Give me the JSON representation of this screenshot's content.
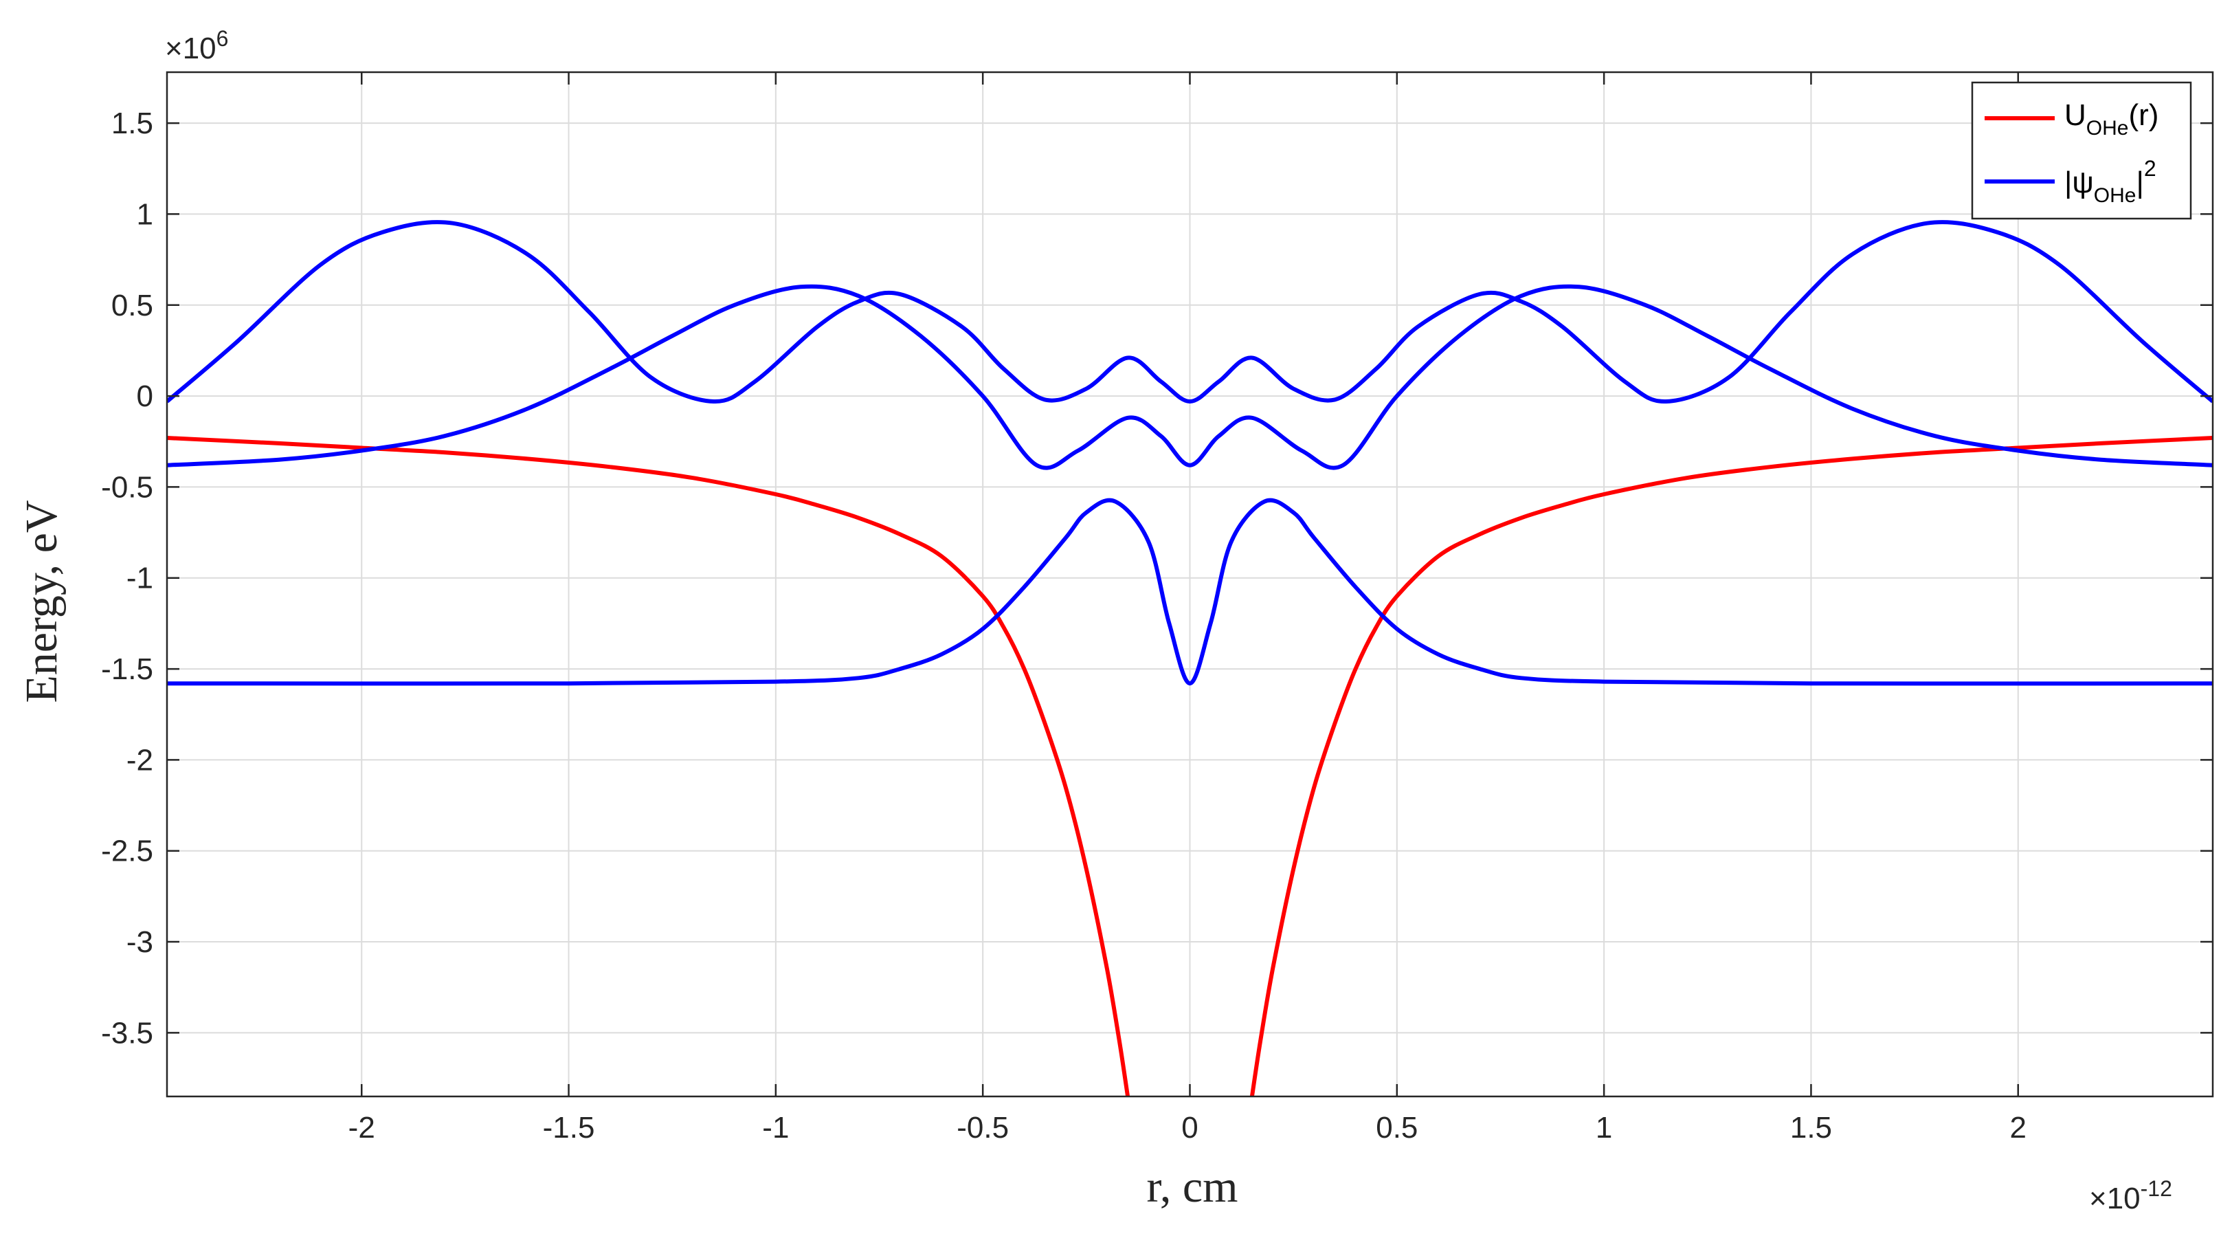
{
  "chart_data": {
    "type": "line",
    "title": "",
    "xlabel": "r, cm",
    "ylabel": "Energy, eV",
    "x_multiplier_label": "×10",
    "x_multiplier_exp": "-12",
    "y_multiplier_label": "×10",
    "y_multiplier_exp": "6",
    "xlim": [
      -2.47,
      2.47
    ],
    "ylim": [
      -3.85,
      1.78
    ],
    "x_ticks": [
      -2,
      -1.5,
      -1,
      -0.5,
      0,
      0.5,
      1,
      1.5,
      2
    ],
    "x_tick_labels": [
      "-2",
      "-1.5",
      "-1",
      "-0.5",
      "0",
      "0.5",
      "1",
      "1.5",
      "2"
    ],
    "y_ticks": [
      1.5,
      1,
      0.5,
      0,
      -0.5,
      -1,
      -1.5,
      -2,
      -2.5,
      -3,
      -3.5
    ],
    "y_tick_labels": [
      "1.5",
      "1",
      "0.5",
      "0",
      "-0.5",
      "-1",
      "-1.5",
      "-2",
      "-2.5",
      "-3",
      "-3.5"
    ],
    "grid": true,
    "legend_position": "top-right",
    "legend": [
      {
        "base": "U",
        "sub": "OHe",
        "tail": "(r)",
        "sup": "",
        "color": "#ff0000"
      },
      {
        "base": "|ψ",
        "sub": "OHe",
        "tail": "|",
        "sup": "2",
        "color": "#0000ff"
      }
    ],
    "series": [
      {
        "name": "U_OHe(r)",
        "color": "#ff0000",
        "x": [
          -2.47,
          -2.2,
          -2.0,
          -1.8,
          -1.6,
          -1.4,
          -1.2,
          -1.0,
          -0.9,
          -0.8,
          -0.7,
          -0.6,
          -0.5,
          -0.45,
          -0.4,
          -0.35,
          -0.3,
          -0.25,
          -0.2,
          -0.17,
          -0.15
        ],
        "y": [
          -0.23,
          -0.26,
          -0.285,
          -0.31,
          -0.345,
          -0.39,
          -0.45,
          -0.54,
          -0.6,
          -0.67,
          -0.76,
          -0.88,
          -1.1,
          -1.27,
          -1.5,
          -1.8,
          -2.15,
          -2.6,
          -3.15,
          -3.55,
          -3.85
        ]
      },
      {
        "name": "U_OHe(r)",
        "color": "#ff0000",
        "x": [
          0.15,
          0.17,
          0.2,
          0.25,
          0.3,
          0.35,
          0.4,
          0.45,
          0.5,
          0.6,
          0.7,
          0.8,
          0.9,
          1.0,
          1.2,
          1.4,
          1.6,
          1.8,
          2.0,
          2.2,
          2.47
        ],
        "y": [
          -3.85,
          -3.55,
          -3.15,
          -2.6,
          -2.15,
          -1.8,
          -1.5,
          -1.27,
          -1.1,
          -0.88,
          -0.76,
          -0.67,
          -0.6,
          -0.54,
          -0.45,
          -0.39,
          -0.345,
          -0.31,
          -0.285,
          -0.26,
          -0.23
        ]
      },
      {
        "name": "|ψ_OHe|^2",
        "color": "#0000ff",
        "x": [
          -2.47,
          -2.3,
          -2.1,
          -1.95,
          -1.78,
          -1.6,
          -1.45,
          -1.3,
          -1.15,
          -1.05,
          -0.9,
          -0.8,
          -0.7,
          -0.55,
          -0.45,
          -0.35,
          -0.25,
          -0.15,
          -0.07,
          0,
          0.07,
          0.15,
          0.25,
          0.35,
          0.45,
          0.55,
          0.7,
          0.8,
          0.9,
          1.05,
          1.15,
          1.3,
          1.45,
          1.6,
          1.78,
          1.95,
          2.1,
          2.3,
          2.47
        ],
        "y": [
          -0.03,
          0.3,
          0.72,
          0.9,
          0.95,
          0.78,
          0.46,
          0.1,
          -0.03,
          0.08,
          0.38,
          0.52,
          0.56,
          0.38,
          0.15,
          -0.02,
          0.04,
          0.21,
          0.08,
          -0.03,
          0.08,
          0.21,
          0.04,
          -0.02,
          0.15,
          0.38,
          0.56,
          0.52,
          0.38,
          0.08,
          -0.03,
          0.1,
          0.46,
          0.78,
          0.95,
          0.9,
          0.72,
          0.3,
          -0.03
        ]
      },
      {
        "name": "|ψ_OHe|^2",
        "color": "#0000ff",
        "x": [
          -2.47,
          -2.2,
          -2.0,
          -1.8,
          -1.6,
          -1.4,
          -1.25,
          -1.1,
          -0.94,
          -0.8,
          -0.65,
          -0.5,
          -0.37,
          -0.27,
          -0.15,
          -0.07,
          0,
          0.07,
          0.15,
          0.27,
          0.37,
          0.5,
          0.65,
          0.8,
          0.94,
          1.1,
          1.25,
          1.4,
          1.6,
          1.8,
          2.0,
          2.2,
          2.47
        ],
        "y": [
          -0.38,
          -0.35,
          -0.3,
          -0.22,
          -0.07,
          0.15,
          0.33,
          0.5,
          0.6,
          0.55,
          0.33,
          0.0,
          -0.38,
          -0.3,
          -0.12,
          -0.22,
          -0.38,
          -0.22,
          -0.12,
          -0.3,
          -0.38,
          0.0,
          0.33,
          0.55,
          0.6,
          0.5,
          0.33,
          0.15,
          -0.07,
          -0.22,
          -0.3,
          -0.35,
          -0.38
        ]
      },
      {
        "name": "|ψ_OHe|^2",
        "color": "#0000ff",
        "x": [
          -2.47,
          -1.5,
          -1.0,
          -0.8,
          -0.7,
          -0.6,
          -0.5,
          -0.4,
          -0.3,
          -0.25,
          -0.18,
          -0.1,
          -0.05,
          0,
          0.05,
          0.1,
          0.18,
          0.25,
          0.3,
          0.4,
          0.5,
          0.6,
          0.7,
          0.8,
          1.0,
          1.5,
          2.47
        ],
        "y": [
          -1.58,
          -1.58,
          -1.57,
          -1.55,
          -1.5,
          -1.42,
          -1.28,
          -1.05,
          -0.78,
          -0.64,
          -0.58,
          -0.8,
          -1.25,
          -1.58,
          -1.25,
          -0.8,
          -0.58,
          -0.64,
          -0.78,
          -1.05,
          -1.28,
          -1.42,
          -1.5,
          -1.55,
          -1.57,
          -1.58,
          -1.58
        ]
      }
    ]
  }
}
